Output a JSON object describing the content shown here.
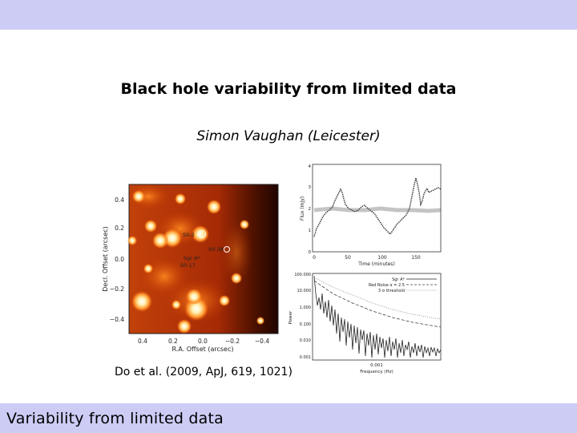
{
  "slide": {
    "title": "Black hole variability from limited data",
    "author": "Simon Vaughan  (Leicester)",
    "citation": "Do et al. (2009, ApJ, 619, 1021)",
    "footer": "Variability from limited data"
  },
  "image_panel": {
    "x_ticks": [
      "0.4",
      "0.2",
      "0.0",
      "−0.2",
      "−0.4"
    ],
    "y_ticks": [
      "0.4",
      "0.2",
      "0.0",
      "−0.2",
      "−0.4"
    ],
    "xlabel": "R.A. Offset (arcsec)",
    "ylabel": "Decl. Offset (arcsec)",
    "labels": [
      "S0-2",
      "S0-38",
      "Sgr A*",
      "S0-17"
    ]
  },
  "lightcurve_panel": {
    "y_ticks": [
      "1",
      "2",
      "3",
      "4"
    ],
    "x_ticks": [
      "0",
      "50",
      "100",
      "150"
    ],
    "y_extra_tick": "0",
    "xlabel": "Time (minutes)",
    "ylabel": "Flux (mJy)"
  },
  "power_panel": {
    "y_ticks": [
      "100.000",
      "10.000",
      "1.000",
      "0.100",
      "0.010",
      "0.001"
    ],
    "x_tick": "0.001",
    "xlabel": "Frequency (Hz)",
    "ylabel": "Power",
    "legend": [
      "Sgr A*",
      "Red Noise α = 2.5",
      "3 σ threshold"
    ]
  }
}
